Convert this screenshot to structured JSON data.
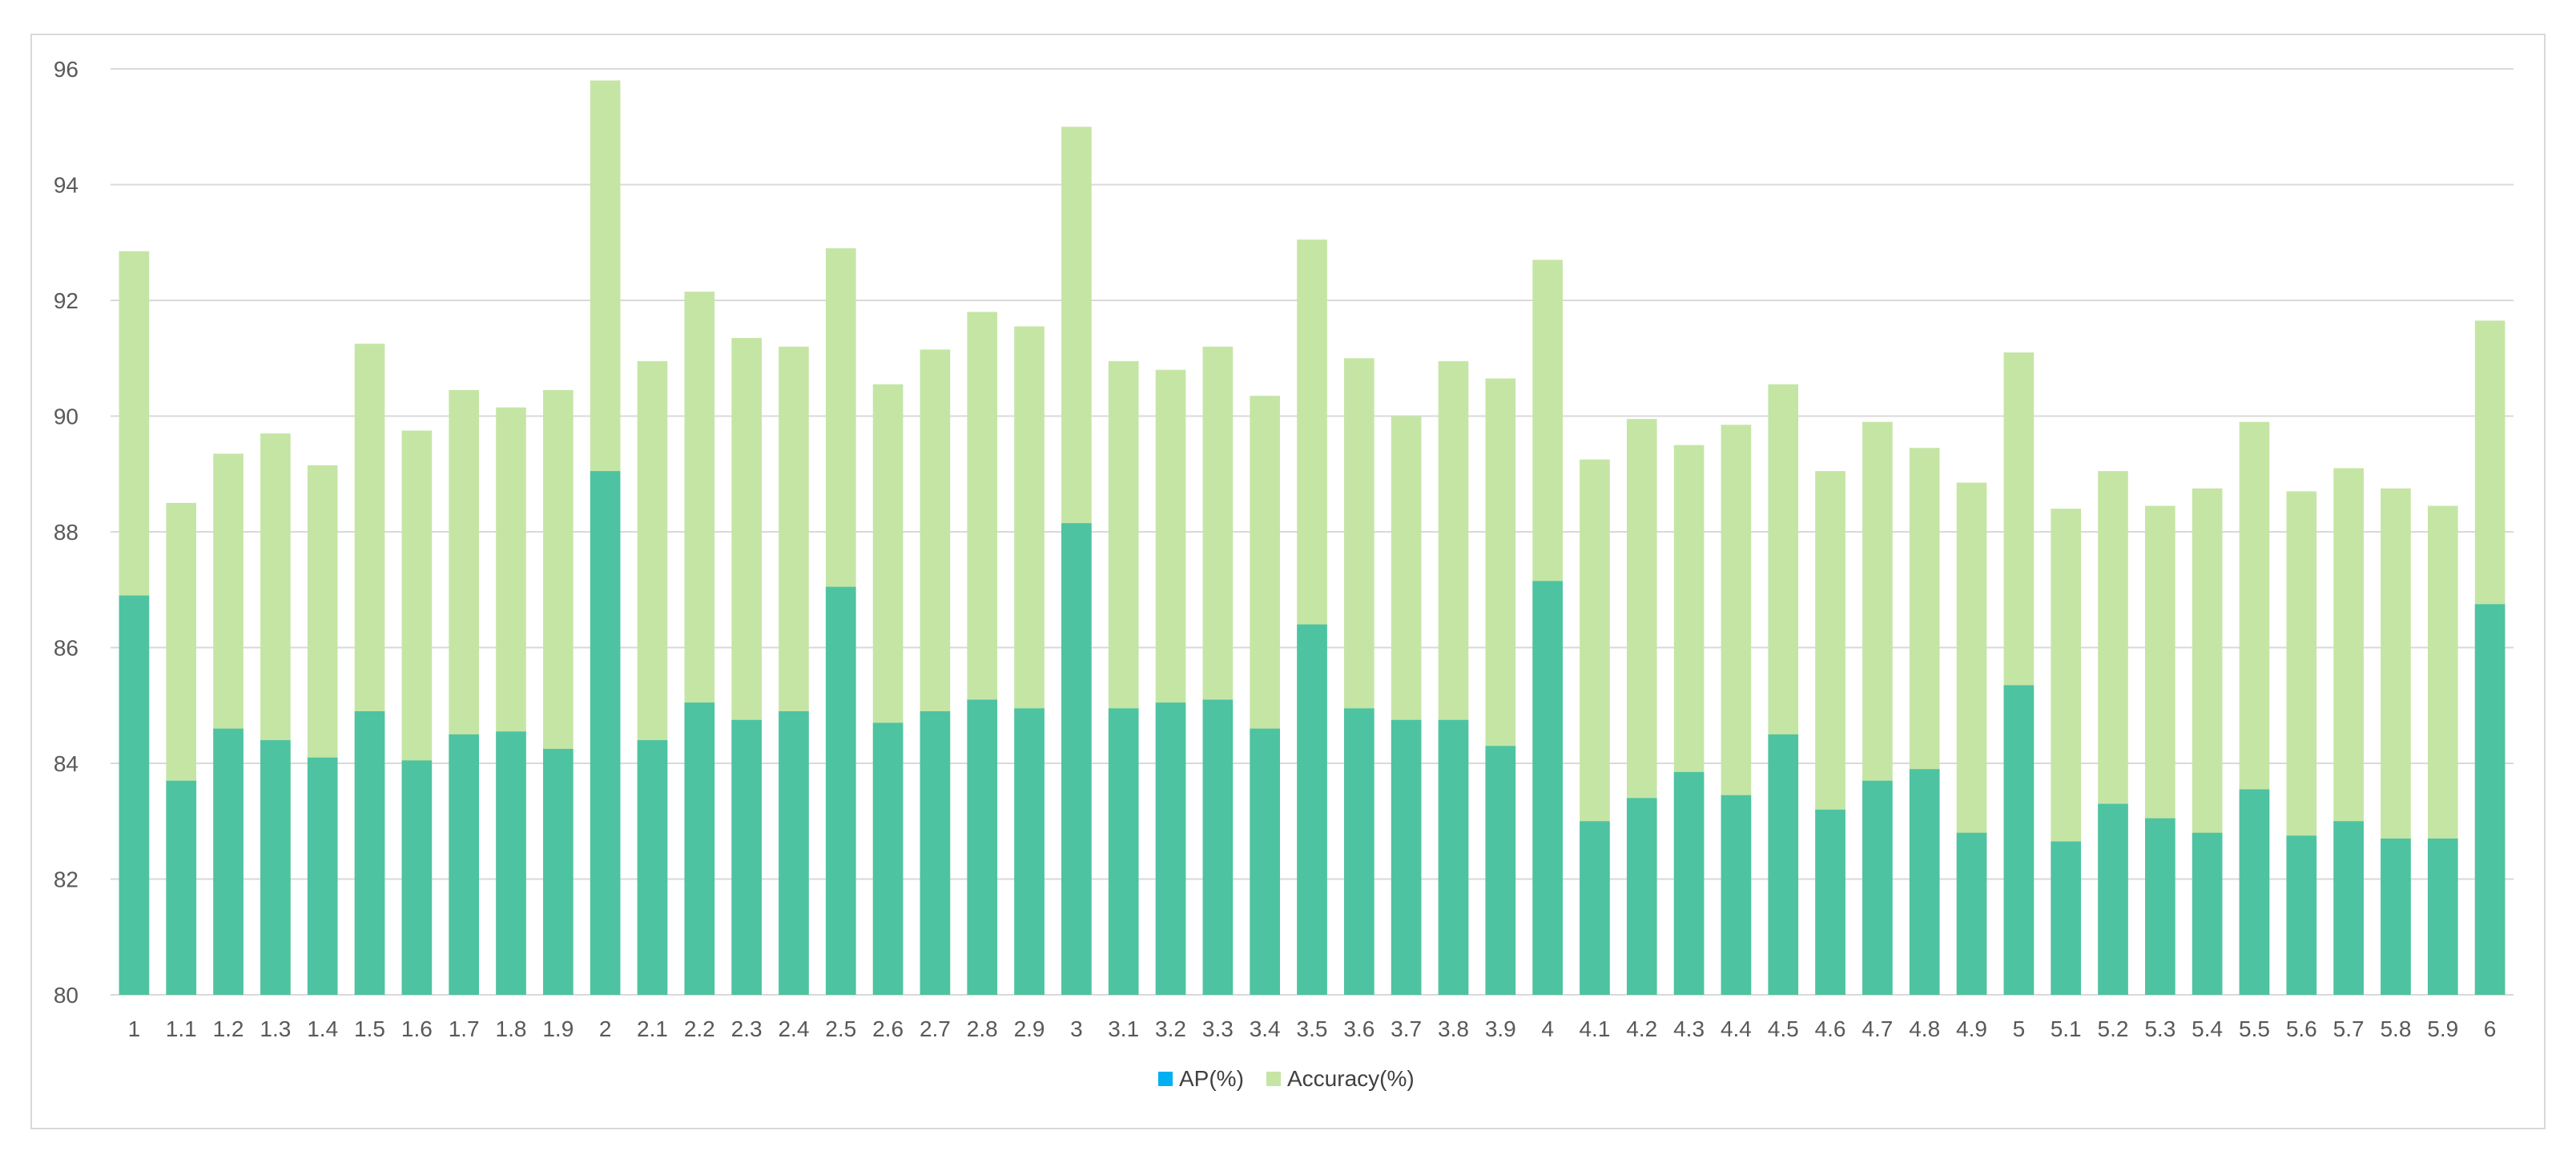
{
  "chart_data": {
    "type": "bar",
    "stacking": "overlay",
    "grid": true,
    "legend_position": "bottom",
    "ylim": [
      80,
      96
    ],
    "yticks": [
      80,
      82,
      84,
      86,
      88,
      90,
      92,
      94,
      96
    ],
    "categories": [
      "1",
      "1.1",
      "1.2",
      "1.3",
      "1.4",
      "1.5",
      "1.6",
      "1.7",
      "1.8",
      "1.9",
      "2",
      "2.1",
      "2.2",
      "2.3",
      "2.4",
      "2.5",
      "2.6",
      "2.7",
      "2.8",
      "2.9",
      "3",
      "3.1",
      "3.2",
      "3.3",
      "3.4",
      "3.5",
      "3.6",
      "3.7",
      "3.8",
      "3.9",
      "4",
      "4.1",
      "4.2",
      "4.3",
      "4.4",
      "4.5",
      "4.6",
      "4.7",
      "4.8",
      "4.9",
      "5",
      "5.1",
      "5.2",
      "5.3",
      "5.4",
      "5.5",
      "5.6",
      "5.7",
      "5.8",
      "5.9",
      "6"
    ],
    "series": [
      {
        "name": "AP(%)",
        "color": "#4dc3a1",
        "legend_color": "#00b0f0",
        "values": [
          86.9,
          83.7,
          84.6,
          84.4,
          84.1,
          84.9,
          84.05,
          84.5,
          84.55,
          84.25,
          89.05,
          84.4,
          85.05,
          84.75,
          84.9,
          87.05,
          84.7,
          84.9,
          85.1,
          84.95,
          88.15,
          84.95,
          85.05,
          85.1,
          84.6,
          86.4,
          84.95,
          84.75,
          84.75,
          84.3,
          87.15,
          83.0,
          83.4,
          83.85,
          83.45,
          84.5,
          83.2,
          83.7,
          83.9,
          82.8,
          85.35,
          82.65,
          83.3,
          83.05,
          82.8,
          83.55,
          82.75,
          83.0,
          82.7,
          82.7,
          86.75
        ]
      },
      {
        "name": "Accuracy(%)",
        "color": "#c5e5a5",
        "legend_color": "#c5e5a5",
        "values": [
          92.85,
          88.5,
          89.35,
          89.7,
          89.15,
          91.25,
          89.75,
          90.45,
          90.15,
          90.45,
          95.8,
          90.95,
          92.15,
          91.35,
          91.2,
          92.9,
          90.55,
          91.15,
          91.8,
          91.55,
          95.0,
          90.95,
          90.8,
          91.2,
          90.35,
          93.05,
          91.0,
          90.0,
          90.95,
          90.65,
          92.7,
          89.25,
          89.95,
          89.5,
          89.85,
          90.55,
          89.05,
          89.9,
          89.45,
          88.85,
          91.1,
          88.4,
          89.05,
          88.45,
          88.75,
          89.9,
          88.7,
          89.1,
          88.75,
          88.45,
          91.65
        ]
      }
    ]
  }
}
